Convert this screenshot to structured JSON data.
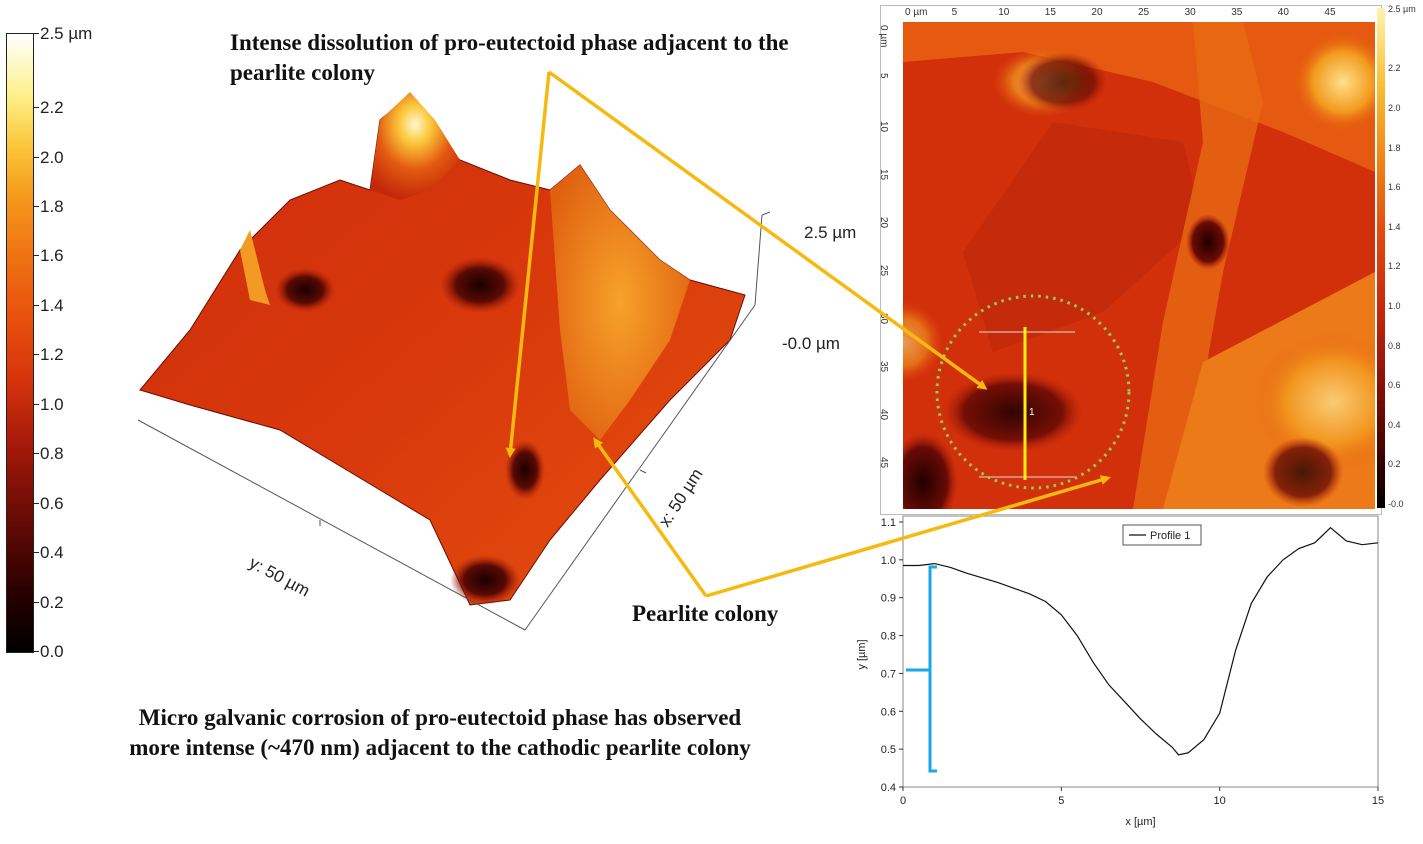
{
  "colorbar_left": {
    "labels": [
      "2.5 µm",
      "2.2",
      "2.0",
      "1.8",
      "1.6",
      "1.4",
      "1.2",
      "1.0",
      "0.8",
      "0.6",
      "0.4",
      "0.2",
      "0.0"
    ],
    "values": [
      2.5,
      2.2,
      2.0,
      1.8,
      1.6,
      1.4,
      1.2,
      1.0,
      0.8,
      0.6,
      0.4,
      0.2,
      0.0
    ]
  },
  "surface3d": {
    "z_top_label": "2.5 µm",
    "z_bottom_label": "-0.0 µm",
    "y_axis_label": "y: 50 µm",
    "x_axis_label": "x: 50 µm"
  },
  "annotations": {
    "dissolution": "Intense dissolution of pro-eutectoid phase adjacent to the pearlite colony",
    "pearlite": "Pearlite colony",
    "caption_line1": "Micro galvanic corrosion of pro-eutectoid phase has observed",
    "caption_line2": "more intense (~470 nm) adjacent to the cathodic pearlite colony"
  },
  "afm_map": {
    "top_ruler": [
      "0 µm",
      "5",
      "10",
      "15",
      "20",
      "25",
      "30",
      "35",
      "40",
      "45"
    ],
    "left_ruler": [
      "0 µm",
      "5",
      "10",
      "15",
      "20",
      "25",
      "30",
      "35",
      "40",
      "45"
    ],
    "colorbar": [
      "2.5 µm",
      "2.2",
      "2.0",
      "1.8",
      "1.6",
      "1.4",
      "1.2",
      "1.0",
      "0.8",
      "0.6",
      "0.4",
      "0.2",
      "-0.0"
    ],
    "profile_marker": "1"
  },
  "colors": {
    "arrow": "#f5b90f",
    "circle": "#8fce5a",
    "depth_bracket": "#1aa7e6",
    "profile_line": "#111111"
  },
  "chart_data": {
    "type": "line",
    "legend": "Profile 1",
    "xlabel": "x [µm]",
    "ylabel": "y [µm]",
    "xlim": [
      0,
      15
    ],
    "ylim": [
      0.4,
      1.1
    ],
    "xticks": [
      "0",
      "5",
      "10",
      "15"
    ],
    "yticks": [
      "1.1",
      "1.0",
      "0.9",
      "0.8",
      "0.7",
      "0.6",
      "0.5",
      "0.4"
    ],
    "x": [
      0,
      0.5,
      1,
      1.5,
      2,
      3,
      4,
      4.5,
      5,
      5.5,
      6,
      6.5,
      7,
      7.5,
      8,
      8.5,
      8.7,
      9,
      9.5,
      10,
      10.5,
      11,
      11.5,
      12,
      12.5,
      13,
      13.5,
      14,
      14.5,
      15
    ],
    "y": [
      0.985,
      0.985,
      0.99,
      0.98,
      0.965,
      0.94,
      0.91,
      0.89,
      0.855,
      0.8,
      0.73,
      0.67,
      0.625,
      0.58,
      0.54,
      0.505,
      0.485,
      0.49,
      0.525,
      0.595,
      0.76,
      0.885,
      0.955,
      1.0,
      1.03,
      1.045,
      1.085,
      1.05,
      1.04,
      1.045
    ],
    "grid": false,
    "legend_position": "top-center"
  }
}
